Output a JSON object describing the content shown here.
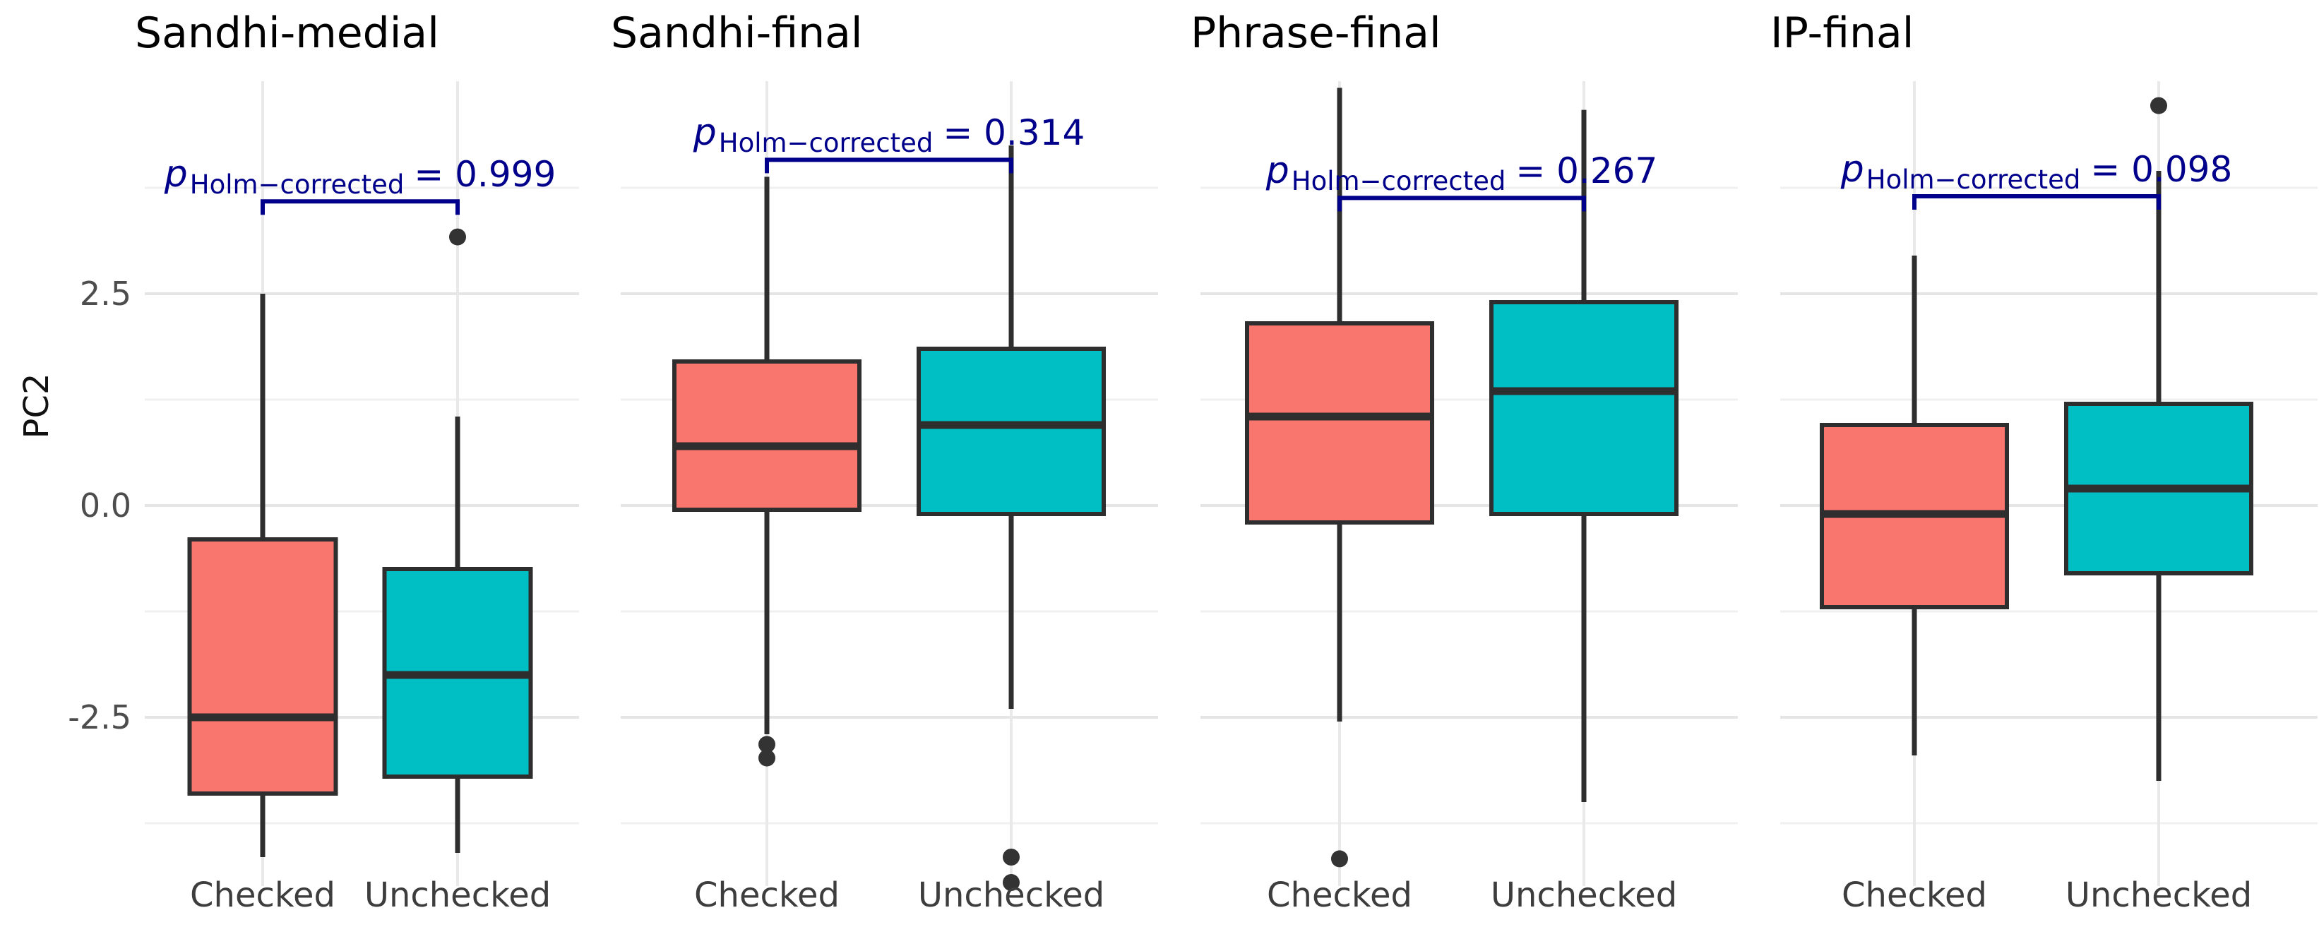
{
  "chart_data": {
    "type": "boxplot",
    "title": "",
    "ylabel": "PC2",
    "xlabel": "",
    "categories": [
      "Checked",
      "Unchecked"
    ],
    "y_axis": {
      "title": "PC2",
      "ticks": [
        {
          "label": "2.5",
          "value": 2.5
        },
        {
          "label": "0.0",
          "value": 0.0
        },
        {
          "label": "-2.5",
          "value": -2.5
        }
      ],
      "minor_gridlines": [
        3.75,
        1.25,
        -1.25,
        -3.75
      ],
      "ylim": [
        -4.5,
        5.0
      ],
      "grid": "horizontal major+minor, vertical at categories"
    },
    "colors": {
      "checked_fill": "#F8766D",
      "unchecked_fill": "#00BFC4",
      "box_stroke": "#2e2e2e",
      "outlier": "#333333",
      "annotation": "#00008B",
      "grid_major": "#e5e5e5",
      "grid_minor": "#f0f0f0",
      "grid_vertical": "#e9e9e9"
    },
    "panels": [
      {
        "title": "Sandhi-medial",
        "p": {
          "sym": "p",
          "sub": "Holm−corrected",
          "eq": "= 0.999"
        },
        "bracket_y": 3.59,
        "groups": [
          {
            "label": "Checked",
            "whisker_low": -4.15,
            "q1": -3.4,
            "median": -2.5,
            "q3": -0.4,
            "whisker_high": 2.5,
            "outliers": []
          },
          {
            "label": "Unchecked",
            "whisker_low": -4.1,
            "q1": -3.2,
            "median": -2.0,
            "q3": -0.75,
            "whisker_high": 1.05,
            "outliers": [
              3.17
            ]
          }
        ]
      },
      {
        "title": "Sandhi-final",
        "p": {
          "sym": "p",
          "sub": "Holm−corrected",
          "eq": "= 0.314"
        },
        "bracket_y": 4.08,
        "groups": [
          {
            "label": "Checked",
            "whisker_low": -2.7,
            "q1": -0.05,
            "median": 0.7,
            "q3": 1.7,
            "whisker_high": 3.88,
            "outliers": [
              -2.82,
              -2.98
            ]
          },
          {
            "label": "Unchecked",
            "whisker_low": -2.4,
            "q1": -0.1,
            "median": 0.95,
            "q3": 1.85,
            "whisker_high": 4.25,
            "outliers": [
              -4.15,
              -4.45
            ]
          }
        ]
      },
      {
        "title": "Phrase-final",
        "p": {
          "sym": "p",
          "sub": "Holm−corrected",
          "eq": "= 0.267"
        },
        "bracket_y": 3.63,
        "groups": [
          {
            "label": "Checked",
            "whisker_low": -2.55,
            "q1": -0.2,
            "median": 1.05,
            "q3": 2.15,
            "whisker_high": 4.93,
            "outliers": [
              -4.17
            ]
          },
          {
            "label": "Unchecked",
            "whisker_low": -3.5,
            "q1": -0.1,
            "median": 1.35,
            "q3": 2.4,
            "whisker_high": 4.67,
            "outliers": []
          }
        ]
      },
      {
        "title": "IP-final",
        "p": {
          "sym": "p",
          "sub": "Holm−corrected",
          "eq": "= 0.098"
        },
        "bracket_y": 3.65,
        "groups": [
          {
            "label": "Checked",
            "whisker_low": -2.95,
            "q1": -1.2,
            "median": -0.1,
            "q3": 0.95,
            "whisker_high": 2.95,
            "outliers": []
          },
          {
            "label": "Unchecked",
            "whisker_low": -3.25,
            "q1": -0.8,
            "median": 0.2,
            "q3": 1.2,
            "whisker_high": 3.95,
            "outliers": [
              4.72
            ]
          }
        ]
      }
    ]
  }
}
